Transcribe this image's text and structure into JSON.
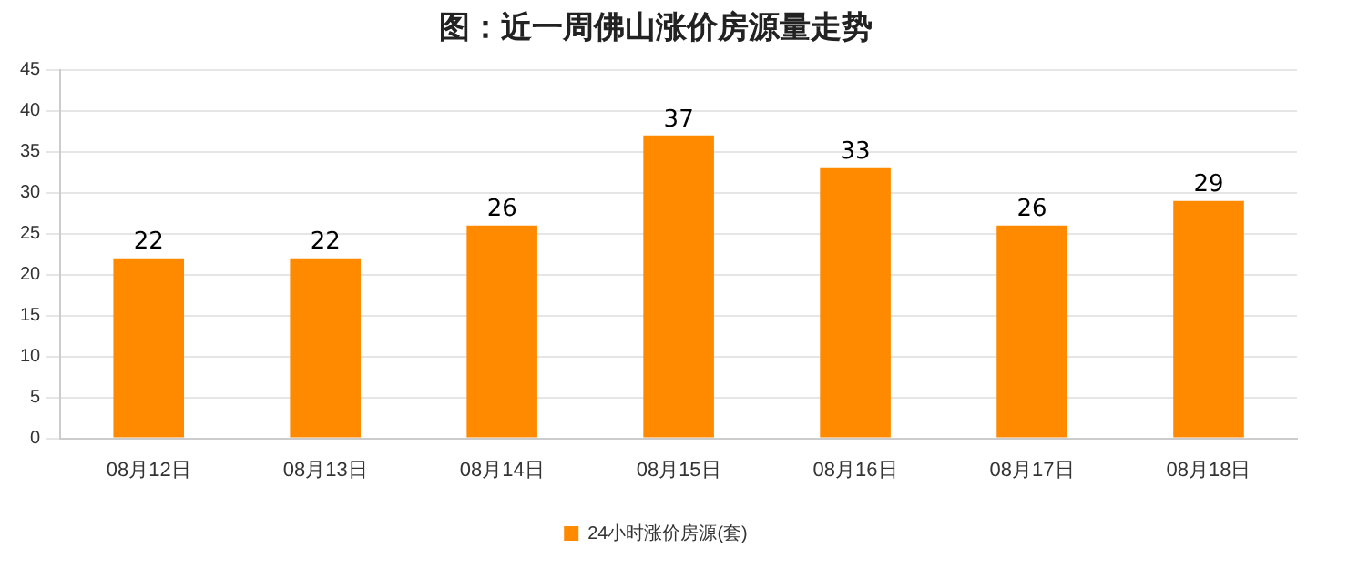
{
  "chart_data": {
    "type": "bar",
    "title": "图：近一周佛山涨价房源量走势",
    "categories": [
      "08月12日",
      "08月13日",
      "08月14日",
      "08月15日",
      "08月16日",
      "08月17日",
      "08月18日"
    ],
    "series": [
      {
        "name": "24小时涨价房源(套)",
        "color": "#ff8a00",
        "values": [
          22,
          22,
          26,
          37,
          33,
          26,
          29
        ]
      }
    ],
    "ylim": [
      0,
      45
    ],
    "yticks": [
      0,
      5,
      10,
      15,
      20,
      25,
      30,
      35,
      40,
      45
    ],
    "grid": "y",
    "legend": "bottom",
    "data_labels": true
  }
}
